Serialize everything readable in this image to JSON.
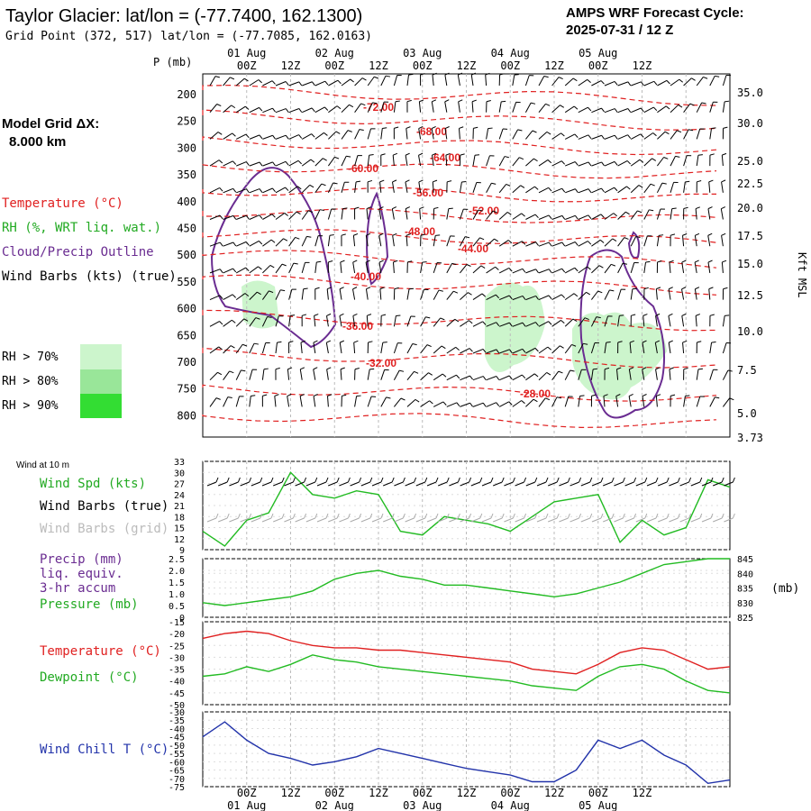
{
  "header": {
    "title": "Taylor Glacier:  lat/lon = (-77.7400, 162.1300)",
    "subtitle": "Grid Point (372, 517) lat/lon = (-77.7085, 162.0163)",
    "cycle_line1": "AMPS WRF Forecast Cycle:",
    "cycle_line2": "2025-07-31 / 12  Z",
    "grid_label": "Model Grid ΔX:",
    "grid_value": "8.000 km"
  },
  "time_axis": {
    "hour_labels": [
      "00Z",
      "12Z",
      "00Z",
      "12Z",
      "00Z",
      "12Z",
      "00Z",
      "12Z",
      "00Z",
      "12Z"
    ],
    "day_labels": [
      "01 Aug",
      "02 Aug",
      "03 Aug",
      "04 Aug",
      "05 Aug"
    ]
  },
  "legend": {
    "temperature": "Temperature (°C)",
    "rh": "RH (%, WRT liq. wat.)",
    "cloud": "Cloud/Precip Outline",
    "wind": "Wind Barbs (kts) (true)",
    "rh70": "RH > 70%",
    "rh80": "RH > 80%",
    "rh90": "RH > 90%",
    "colors": {
      "temperature": "#e02020",
      "rh": "#22aa22",
      "cloud": "#6a2c91",
      "rh70": "#ccf5cc",
      "rh80": "#99e699",
      "rh90": "#33dd33"
    }
  },
  "charts": {
    "profile": {
      "p_unit": "P (mb)",
      "p_ticks": [
        "200",
        "250",
        "300",
        "350",
        "400",
        "450",
        "500",
        "550",
        "600",
        "650",
        "700",
        "750",
        "800"
      ],
      "kft_label": "Kft MSL",
      "kft_ticks": [
        "35.0",
        "30.0",
        "25.0",
        "22.5",
        "20.0",
        "17.5",
        "15.0",
        "12.5",
        "10.0",
        "7.5",
        "5.0",
        "3.73"
      ],
      "temp_contours": [
        "-72.00",
        "-68.00",
        "-64.00",
        "-60.00",
        "-56.00",
        "-52.00",
        "-48.00",
        "-44.00",
        "-40.00",
        "-36.00",
        "-32.00",
        "-28.00"
      ]
    },
    "wind": {
      "title": "Wind at 10 m",
      "label_spd": "Wind Spd (kts)",
      "label_true": "Wind Barbs (true)",
      "label_grid": "Wind Barbs (grid)",
      "y_ticks": [
        "33",
        "30",
        "27",
        "24",
        "21",
        "18",
        "15",
        "12",
        "9"
      ]
    },
    "precip": {
      "label1": "Precip (mm)",
      "label2": "liq. equiv.",
      "label3": "3-hr accum",
      "label4": "Pressure (mb)",
      "left_ticks": [
        "2.5",
        "2.0",
        "1.5",
        "1.0",
        "0.5",
        "0"
      ],
      "right_ticks": [
        "845",
        "840",
        "835",
        "830",
        "825"
      ],
      "right_unit": "(mb)"
    },
    "temp": {
      "label_t": "Temperature (°C)",
      "label_td": "Dewpoint (°C)",
      "y_ticks": [
        "-15",
        "-20",
        "-25",
        "-30",
        "-35",
        "-40",
        "-45",
        "-50"
      ]
    },
    "chill": {
      "label": "Wind Chill T (°C)",
      "y_ticks": [
        "-30",
        "-35",
        "-40",
        "-45",
        "-50",
        "-55",
        "-60",
        "-65",
        "-70",
        "-75"
      ]
    }
  },
  "chart_data": [
    {
      "type": "line",
      "name": "wind_speed_10m",
      "x_hours": [
        0,
        6,
        12,
        18,
        24,
        30,
        36,
        42,
        48,
        54,
        60,
        66,
        72,
        78,
        84,
        90,
        96,
        102,
        108,
        114,
        120,
        126,
        132,
        138,
        144
      ],
      "series": [
        {
          "name": "Wind Spd (kts)",
          "color": "#22bb22",
          "values": [
            14,
            10,
            17,
            19,
            30,
            24,
            23,
            25,
            24,
            14,
            13,
            18,
            17,
            16,
            14,
            18,
            22,
            23,
            24,
            11,
            17,
            13,
            15,
            28,
            26
          ]
        }
      ],
      "ylim": [
        9,
        33
      ]
    },
    {
      "type": "line",
      "name": "surface_pressure",
      "x_hours": [
        0,
        6,
        12,
        18,
        24,
        30,
        36,
        42,
        48,
        54,
        60,
        66,
        72,
        78,
        84,
        90,
        96,
        102,
        108,
        114,
        120,
        126,
        132,
        138,
        144
      ],
      "series": [
        {
          "name": "Pressure (mb)",
          "color": "#22bb22",
          "values": [
            830,
            829,
            830,
            831,
            832,
            834,
            838,
            840,
            841,
            839,
            838,
            836,
            836,
            835,
            834,
            833,
            832,
            833,
            835,
            837,
            840,
            843,
            844,
            845,
            845
          ]
        },
        {
          "name": "Precip (mm)",
          "color": "#6a2c91",
          "values": [
            0,
            0,
            0,
            0,
            0,
            0,
            0,
            0,
            0,
            0,
            0,
            0,
            0,
            0,
            0,
            0,
            0,
            0,
            0,
            0,
            0.02,
            0,
            0,
            0,
            0
          ]
        }
      ],
      "y2lim": [
        825,
        845
      ],
      "ylim": [
        0,
        2.5
      ]
    },
    {
      "type": "line",
      "name": "temperature_dewpoint",
      "x_hours": [
        0,
        6,
        12,
        18,
        24,
        30,
        36,
        42,
        48,
        54,
        60,
        66,
        72,
        78,
        84,
        90,
        96,
        102,
        108,
        114,
        120,
        126,
        132,
        138,
        144
      ],
      "series": [
        {
          "name": "Temperature (°C)",
          "color": "#e02020",
          "values": [
            -22,
            -20,
            -19,
            -20,
            -23,
            -25,
            -26,
            -26,
            -27,
            -27,
            -28,
            -29,
            -30,
            -31,
            -32,
            -35,
            -36,
            -37,
            -33,
            -28,
            -26,
            -27,
            -31,
            -35,
            -34
          ]
        },
        {
          "name": "Dewpoint (°C)",
          "color": "#22bb22",
          "values": [
            -38,
            -37,
            -34,
            -36,
            -33,
            -29,
            -31,
            -32,
            -34,
            -35,
            -36,
            -37,
            -38,
            -39,
            -40,
            -42,
            -43,
            -44,
            -38,
            -34,
            -33,
            -35,
            -40,
            -44,
            -45
          ]
        }
      ],
      "ylim": [
        -50,
        -15
      ]
    },
    {
      "type": "line",
      "name": "wind_chill",
      "x_hours": [
        0,
        6,
        12,
        18,
        24,
        30,
        36,
        42,
        48,
        54,
        60,
        66,
        72,
        78,
        84,
        90,
        96,
        102,
        108,
        114,
        120,
        126,
        132,
        138,
        144
      ],
      "series": [
        {
          "name": "Wind Chill T (°C)",
          "color": "#2233aa",
          "values": [
            -45,
            -36,
            -47,
            -55,
            -58,
            -62,
            -60,
            -57,
            -52,
            -55,
            -58,
            -61,
            -64,
            -66,
            -68,
            -72,
            -72,
            -65,
            -47,
            -52,
            -47,
            -56,
            -62,
            -73,
            -71
          ]
        }
      ],
      "ylim": [
        -75,
        -30
      ]
    }
  ]
}
